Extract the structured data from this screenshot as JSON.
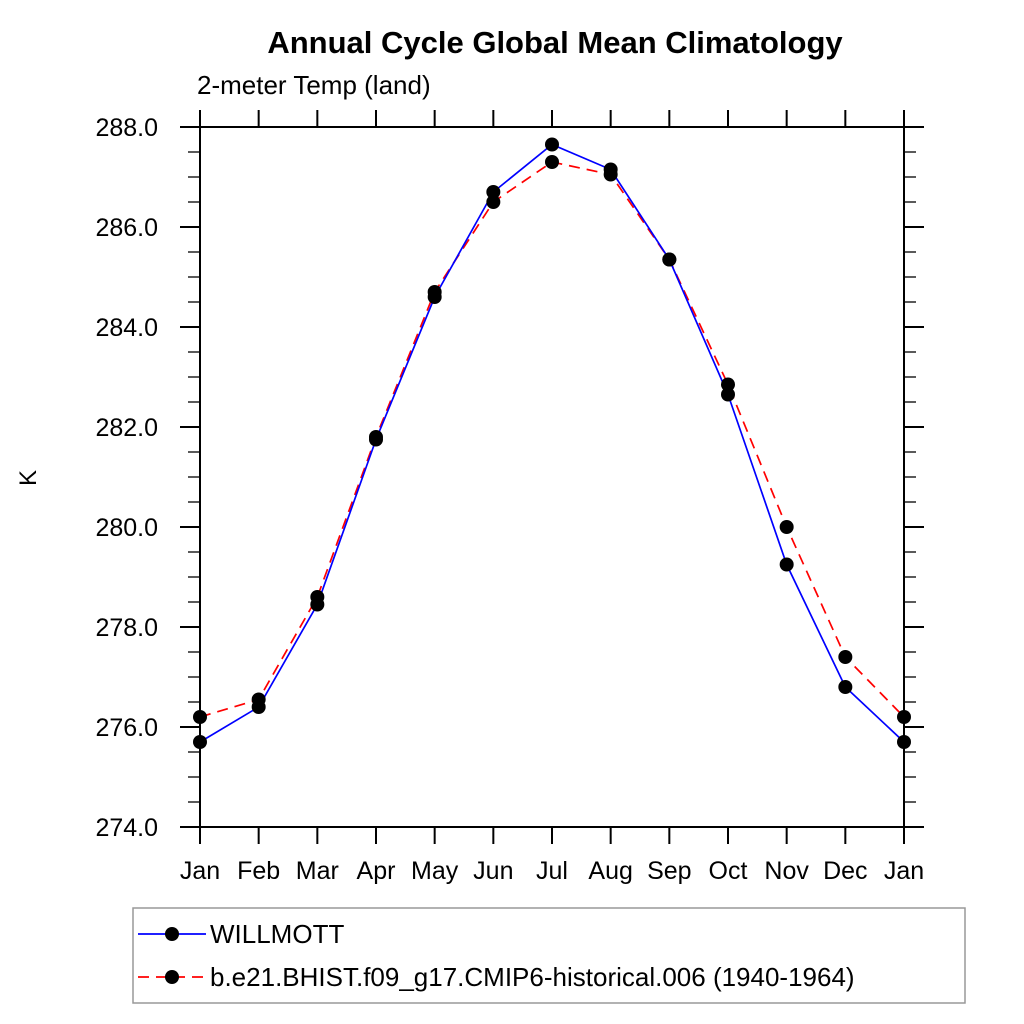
{
  "chart_data": {
    "type": "line",
    "title": "Annual Cycle Global Mean Climatology",
    "subtitle": "2-meter Temp (land)",
    "ylabel": "K",
    "x_categories": [
      "Jan",
      "Feb",
      "Mar",
      "Apr",
      "May",
      "Jun",
      "Jul",
      "Aug",
      "Sep",
      "Oct",
      "Nov",
      "Dec",
      "Jan"
    ],
    "ylim": [
      274.0,
      288.0
    ],
    "ytick_major_interval": 2.0,
    "ytick_minor_interval": 0.5,
    "ytick_labels": [
      "288.0",
      "286.0",
      "284.0",
      "282.0",
      "280.0",
      "278.0",
      "276.0",
      "274.0"
    ],
    "grid": false,
    "legend_position": "bottom-left-box",
    "marker": {
      "shape": "filled-circle",
      "color": "#000000",
      "radius_px": 7
    },
    "series": [
      {
        "name": "WILLMOTT",
        "color": "#0000ff",
        "line_style": "solid",
        "values": [
          275.7,
          276.4,
          278.45,
          281.75,
          284.6,
          286.7,
          287.65,
          287.15,
          285.35,
          282.65,
          279.25,
          276.8,
          275.7
        ]
      },
      {
        "name": "b.e21.BHIST.f09_g17.CMIP6-historical.006 (1940-1964)",
        "color": "#ff0000",
        "line_style": "dashed",
        "values": [
          276.2,
          276.55,
          278.6,
          281.8,
          284.7,
          286.5,
          287.3,
          287.05,
          285.35,
          282.85,
          280.0,
          277.4,
          276.2
        ]
      }
    ]
  },
  "colors": {
    "axis": "#000000",
    "legend_border": "#999999",
    "background": "#ffffff"
  }
}
